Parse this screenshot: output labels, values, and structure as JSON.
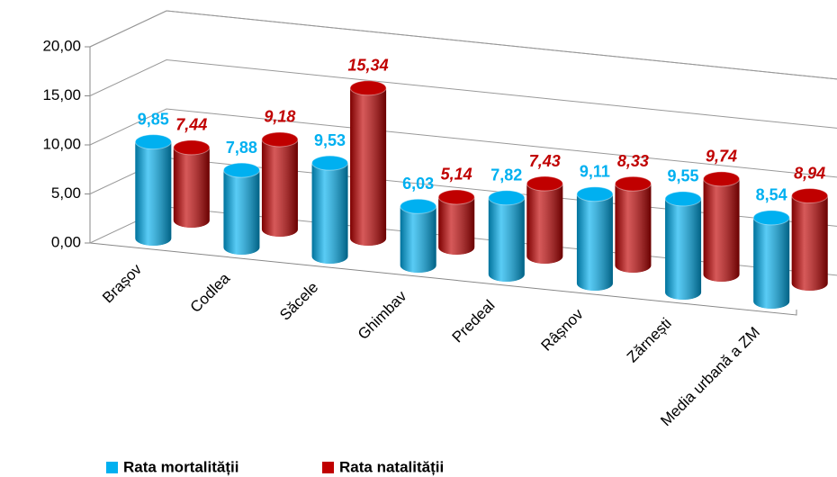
{
  "chart_data": {
    "type": "bar3d",
    "categories": [
      "Brașov",
      "Codlea",
      "Săcele",
      "Ghimbav",
      "Predeal",
      "Râșnov",
      "Zărnești",
      "Media urbană a ZM"
    ],
    "series": [
      {
        "name": "Rata mortalității",
        "color": "#00b0f0",
        "values": [
          9.85,
          7.88,
          9.53,
          6.03,
          7.82,
          9.11,
          9.55,
          8.54
        ],
        "value_labels": [
          "9,85",
          "7,88",
          "9,53",
          "6,03",
          "7,82",
          "9,11",
          "9,55",
          "8,54"
        ]
      },
      {
        "name": "Rata natalității",
        "color": "#c00000",
        "values": [
          7.44,
          9.18,
          15.34,
          5.14,
          7.43,
          8.33,
          9.74,
          8.94
        ],
        "value_labels": [
          "7,44",
          "9,18",
          "15,34",
          "5,14",
          "7,43",
          "8,33",
          "9,74",
          "8,94"
        ]
      }
    ],
    "ylim": [
      0,
      20
    ],
    "yticks": [
      {
        "value": 0,
        "label": "0,00"
      },
      {
        "value": 5,
        "label": "5,00"
      },
      {
        "value": 10,
        "label": "10,00"
      },
      {
        "value": 15,
        "label": "15,00"
      },
      {
        "value": 20,
        "label": "20,00"
      }
    ],
    "grid": true,
    "legend": "bottom"
  }
}
